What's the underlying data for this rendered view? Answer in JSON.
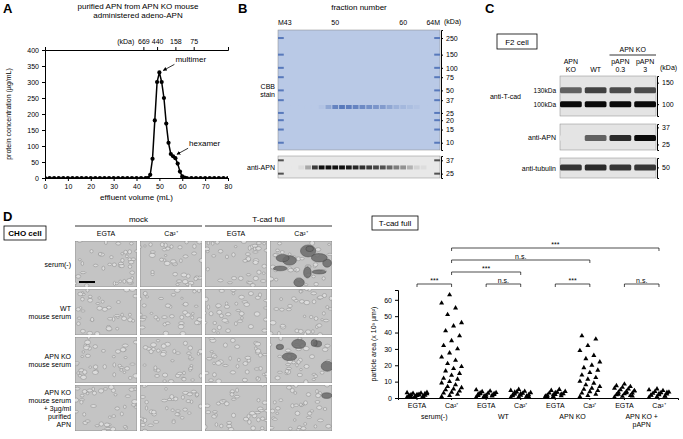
{
  "chart_data": [
    {
      "type": "line",
      "panel": "A",
      "title": [
        "purified APN from APN KO mouse",
        "administered adeno-APN"
      ],
      "x_label": "effluent volume (mL)",
      "y_label": "protein concentration (µg/mL)",
      "x": [
        0,
        2,
        4,
        6,
        8,
        10,
        12,
        14,
        16,
        18,
        20,
        22,
        24,
        26,
        28,
        30,
        32,
        34,
        36,
        38,
        40,
        42,
        44,
        45,
        46,
        47,
        48,
        49,
        50,
        51,
        52,
        53,
        54,
        55,
        56,
        57,
        58,
        59,
        60,
        61,
        62,
        64,
        66,
        68,
        70,
        72,
        74,
        76,
        78,
        80
      ],
      "values": [
        0,
        0,
        0,
        0,
        0,
        0,
        0,
        0,
        0,
        0,
        0,
        0,
        0,
        0,
        0,
        0,
        0,
        0,
        0,
        0,
        0,
        0,
        0,
        0,
        10,
        60,
        180,
        300,
        330,
        300,
        250,
        170,
        110,
        75,
        68,
        62,
        45,
        20,
        5,
        1,
        0,
        0,
        0,
        0,
        0,
        0,
        0,
        0,
        0,
        0
      ],
      "color": "#000000",
      "marker": "circle",
      "xlim": [
        0,
        80
      ],
      "xticks": [
        0,
        10,
        20,
        30,
        40,
        50,
        60,
        70,
        80
      ],
      "ylim": [
        0,
        400
      ],
      "yticks": [
        0,
        50,
        100,
        150,
        200,
        250,
        300,
        350,
        400
      ],
      "top_axis": {
        "label": "(kDa)",
        "ticks": [
          {
            "value": 43,
            "label": "669"
          },
          {
            "value": 49,
            "label": "440"
          },
          {
            "value": 57,
            "label": "158"
          },
          {
            "value": 65,
            "label": "75"
          }
        ]
      },
      "annotations": [
        {
          "text": "multimer",
          "x": 50,
          "y": 330
        },
        {
          "text": "hexamer",
          "x": 56,
          "y": 68
        }
      ]
    },
    {
      "type": "gel",
      "panel": "B",
      "title": "fraction number",
      "y_label": "(kDa)",
      "log": "y",
      "categories": [
        "M",
        "43",
        null,
        null,
        null,
        null,
        null,
        null,
        "50",
        null,
        null,
        null,
        null,
        null,
        null,
        null,
        null,
        null,
        "60",
        null,
        null,
        null,
        "64",
        "M"
      ],
      "blots": [
        {
          "label": [
            "CBB",
            "stain"
          ],
          "ylim": [
            8,
            320
          ],
          "yticks": [
            250,
            150,
            100,
            75,
            50,
            37,
            25,
            20,
            15,
            10
          ],
          "bands": [
            {
              "kDa": 30,
              "values": [
                null,
                0,
                0,
                0,
                0,
                0,
                0.05,
                0.3,
                0.6,
                0.7,
                0.65,
                0.6,
                0.55,
                0.5,
                0.45,
                0.4,
                0.3,
                0.2,
                0.15,
                0.1,
                0.05,
                0,
                0,
                null
              ]
            }
          ]
        },
        {
          "label": [
            "anti-APN"
          ],
          "ylim": [
            22,
            42
          ],
          "yticks": [
            37,
            25
          ],
          "bands": [
            {
              "kDa": 30,
              "values": [
                null,
                0,
                0,
                0.05,
                0.3,
                0.8,
                1,
                1,
                1,
                1,
                0.95,
                0.9,
                0.85,
                0.8,
                0.75,
                0.7,
                0.6,
                0.5,
                0.4,
                0.25,
                0.1,
                0.05,
                0,
                null
              ]
            }
          ]
        }
      ]
    },
    {
      "type": "blot",
      "panel": "C",
      "title": "F2 cell",
      "y_label": "(kDa)",
      "log": "y",
      "categories": [
        [
          "APN",
          "KO"
        ],
        [
          "WT"
        ],
        [
          "pAPN",
          "0.3"
        ],
        [
          "pAPN",
          "3"
        ]
      ],
      "group": {
        "label": "APN KO",
        "from": 2,
        "to": 3
      },
      "blots": [
        {
          "label": [
            "anti-T-cad"
          ],
          "ylim": [
            80,
            170
          ],
          "yticks": [
            150,
            100
          ],
          "bands": [
            {
              "kDa": 130,
              "label": "130kDa",
              "values": [
                0.6,
                0.75,
                0.7,
                0.7
              ]
            },
            {
              "kDa": 100,
              "label": "100kDa",
              "values": [
                1,
                1,
                1,
                1
              ]
            }
          ]
        },
        {
          "label": [
            "anti-APN"
          ],
          "ylim": [
            22,
            40
          ],
          "yticks": [
            37,
            25
          ],
          "bands": [
            {
              "kDa": 29,
              "values": [
                0,
                0.6,
                0.85,
                1
              ]
            }
          ]
        },
        {
          "label": [
            "anti-tubulin"
          ],
          "ylim": [
            44,
            56
          ],
          "yticks": [
            50
          ],
          "bands": [
            {
              "kDa": 50,
              "values": [
                0.8,
                0.85,
                0.8,
                0.8
              ]
            }
          ]
        }
      ]
    },
    {
      "type": "image_grid",
      "panel": "D",
      "title": "CHO cell",
      "columns": [
        "mock",
        "T-cad full"
      ],
      "subcolumns": [
        "EGTA",
        "Ca²⁺"
      ],
      "rows": [
        [
          "serum(-)"
        ],
        [
          "WT",
          "mouse serum"
        ],
        [
          "APN KO",
          "mouse serum"
        ],
        [
          "APN KO",
          "mouse serum",
          "+ 3µg/ml",
          "purified",
          "APN"
        ]
      ],
      "aggregation": [
        [
          0,
          0,
          0,
          1
        ],
        [
          0,
          0,
          0,
          0
        ],
        [
          0,
          0,
          0,
          0.6
        ],
        [
          0,
          0,
          0,
          0.1
        ]
      ]
    },
    {
      "type": "strip",
      "title": "T-cad full",
      "y_label": "particle area (x 10³ µm²)",
      "categories": [
        "EGTA",
        "Ca²⁺",
        "EGTA",
        "Ca²⁺",
        "EGTA",
        "Ca²⁺",
        "EGTA",
        "Ca²⁺"
      ],
      "groups": [
        [
          "serum(-)"
        ],
        [
          "WT"
        ],
        [
          "APN KO"
        ],
        [
          "APN KO +",
          "pAPN"
        ]
      ],
      "ylim": [
        0,
        66
      ],
      "yticks": [
        0,
        10,
        20,
        30,
        40,
        50,
        60
      ],
      "marker": "triangle",
      "color": "#000000",
      "values": [
        [
          0.5,
          0.8,
          1,
          1.2,
          1.5,
          1.7,
          2,
          2.2,
          2.5,
          2.8,
          3,
          3.2,
          1.1,
          0.9,
          1.4,
          2.1,
          2.6,
          0.7,
          1.8,
          3.4
        ],
        [
          0.8,
          1.5,
          2.2,
          3,
          3.5,
          4.2,
          5,
          5.5,
          6.3,
          7,
          8,
          9.2,
          10,
          11.5,
          12,
          13.8,
          15,
          16.5,
          18,
          19.2,
          21,
          23,
          25,
          27.5,
          30,
          32,
          35,
          38,
          41,
          44,
          46,
          51,
          55,
          58,
          63
        ],
        [
          0.5,
          0.9,
          1.2,
          1.5,
          1.8,
          2.1,
          2.5,
          2.9,
          3.3,
          3.8,
          4.2,
          5,
          1,
          1.6,
          2.3,
          0.7,
          2.7,
          3.1
        ],
        [
          0.4,
          0.7,
          1,
          1.3,
          1.6,
          2,
          2.4,
          2.8,
          3.2,
          3.7,
          4.1,
          4.6,
          5.2,
          1.1,
          1.9,
          2.6,
          0.8,
          3.5
        ],
        [
          0.5,
          0.9,
          1.3,
          1.7,
          2.1,
          2.6,
          3,
          3.5,
          4,
          4.6,
          5.2,
          1.1,
          1.9,
          2.4,
          0.7,
          3.3
        ],
        [
          0.8,
          1.5,
          2.2,
          3,
          3.8,
          4.5,
          5.3,
          6,
          7,
          8,
          9,
          10.2,
          11.5,
          12.5,
          14,
          15.5,
          17,
          18.5,
          20,
          22,
          24,
          26,
          29,
          32,
          36,
          38
        ],
        [
          0.5,
          1,
          1.5,
          2,
          2.5,
          3,
          3.5,
          4,
          4.5,
          5,
          5.5,
          6,
          6.5,
          7,
          7.5,
          8.5,
          1.2,
          2.2,
          3.2,
          4.2
        ],
        [
          0.4,
          0.8,
          1.2,
          1.6,
          2,
          2.4,
          2.8,
          3.2,
          3.6,
          4,
          4.5,
          5,
          5.5,
          1,
          1.8,
          2.6,
          3.4
        ]
      ],
      "comparisons": [
        {
          "between": [
            0,
            1
          ],
          "label": "***"
        },
        {
          "between": [
            2,
            3
          ],
          "label": "n.s."
        },
        {
          "between": [
            4,
            5
          ],
          "label": "***"
        },
        {
          "between": [
            6,
            7
          ],
          "label": "n.s."
        },
        {
          "between": [
            1,
            3
          ],
          "label": "***"
        },
        {
          "between": [
            1,
            5
          ],
          "label": "n.s."
        },
        {
          "between": [
            1,
            7
          ],
          "label": "***"
        }
      ]
    }
  ]
}
